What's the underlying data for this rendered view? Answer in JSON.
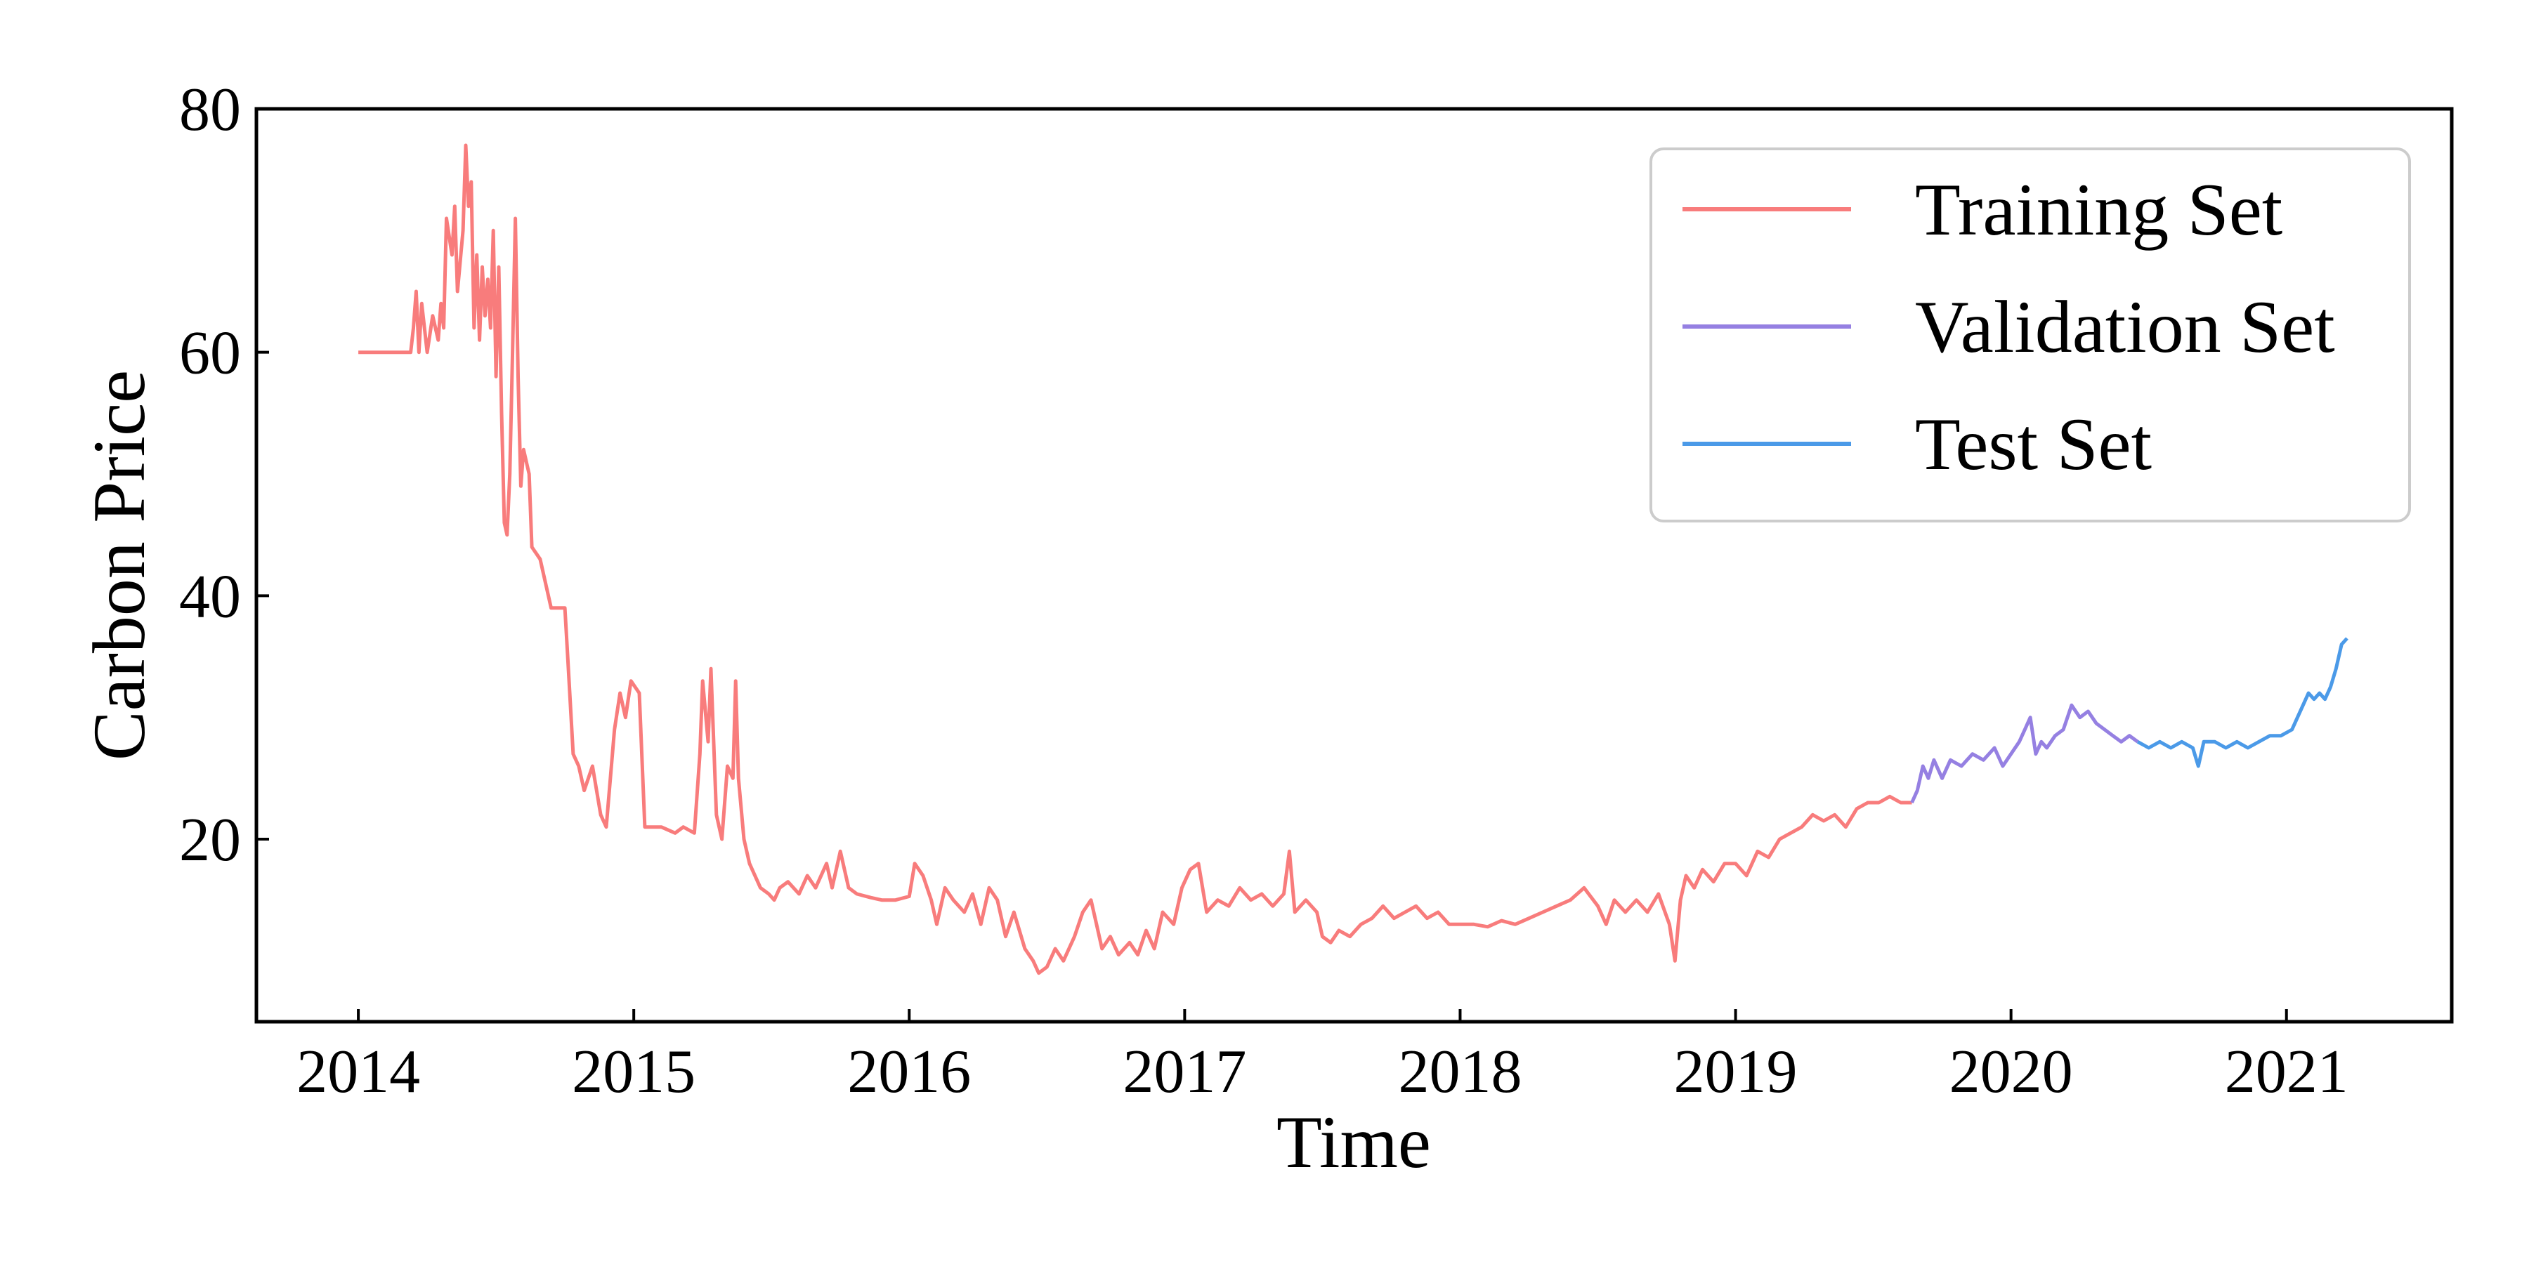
{
  "chart_data": {
    "type": "line",
    "title": "",
    "xlabel": "Time",
    "ylabel": "Carbon Price",
    "xlim": [
      2013.63,
      2021.6
    ],
    "ylim": [
      5,
      80
    ],
    "xticks": [
      2014,
      2015,
      2016,
      2017,
      2018,
      2019,
      2020,
      2021
    ],
    "yticks": [
      20,
      40,
      60,
      80
    ],
    "grid": false,
    "legend_position": "top-right",
    "series": [
      {
        "name": "Training Set",
        "color": "#f87c7c",
        "points": [
          [
            2014.0,
            60
          ],
          [
            2014.1,
            60
          ],
          [
            2014.19,
            60
          ],
          [
            2014.2,
            62
          ],
          [
            2014.21,
            65
          ],
          [
            2014.22,
            60
          ],
          [
            2014.23,
            64
          ],
          [
            2014.25,
            60
          ],
          [
            2014.27,
            63
          ],
          [
            2014.29,
            61
          ],
          [
            2014.3,
            64
          ],
          [
            2014.31,
            62
          ],
          [
            2014.32,
            71
          ],
          [
            2014.34,
            68
          ],
          [
            2014.35,
            72
          ],
          [
            2014.36,
            65
          ],
          [
            2014.38,
            70
          ],
          [
            2014.39,
            77
          ],
          [
            2014.4,
            72
          ],
          [
            2014.41,
            74
          ],
          [
            2014.42,
            62
          ],
          [
            2014.43,
            68
          ],
          [
            2014.44,
            61
          ],
          [
            2014.45,
            67
          ],
          [
            2014.46,
            63
          ],
          [
            2014.47,
            66
          ],
          [
            2014.48,
            62
          ],
          [
            2014.49,
            70
          ],
          [
            2014.5,
            58
          ],
          [
            2014.51,
            67
          ],
          [
            2014.52,
            55
          ],
          [
            2014.53,
            46
          ],
          [
            2014.54,
            45
          ],
          [
            2014.55,
            50
          ],
          [
            2014.56,
            60
          ],
          [
            2014.57,
            71
          ],
          [
            2014.58,
            58
          ],
          [
            2014.59,
            49
          ],
          [
            2014.6,
            52
          ],
          [
            2014.62,
            50
          ],
          [
            2014.63,
            44
          ],
          [
            2014.66,
            43
          ],
          [
            2014.7,
            39
          ],
          [
            2014.75,
            39
          ],
          [
            2014.76,
            35
          ],
          [
            2014.78,
            27
          ],
          [
            2014.8,
            26
          ],
          [
            2014.82,
            24
          ],
          [
            2014.85,
            26
          ],
          [
            2014.88,
            22
          ],
          [
            2014.9,
            21
          ],
          [
            2014.93,
            29
          ],
          [
            2014.95,
            32
          ],
          [
            2014.97,
            30
          ],
          [
            2014.99,
            33
          ],
          [
            2015.02,
            32
          ],
          [
            2015.04,
            21
          ],
          [
            2015.1,
            21
          ],
          [
            2015.15,
            20.5
          ],
          [
            2015.18,
            21
          ],
          [
            2015.22,
            20.5
          ],
          [
            2015.24,
            27
          ],
          [
            2015.25,
            33
          ],
          [
            2015.27,
            28
          ],
          [
            2015.28,
            34
          ],
          [
            2015.3,
            22
          ],
          [
            2015.32,
            20
          ],
          [
            2015.34,
            26
          ],
          [
            2015.36,
            25
          ],
          [
            2015.37,
            33
          ],
          [
            2015.38,
            25
          ],
          [
            2015.4,
            20
          ],
          [
            2015.42,
            18
          ],
          [
            2015.44,
            17
          ],
          [
            2015.46,
            16
          ],
          [
            2015.49,
            15.5
          ],
          [
            2015.51,
            15
          ],
          [
            2015.53,
            16
          ],
          [
            2015.56,
            16.5
          ],
          [
            2015.6,
            15.5
          ],
          [
            2015.63,
            17
          ],
          [
            2015.66,
            16
          ],
          [
            2015.7,
            18
          ],
          [
            2015.72,
            16
          ],
          [
            2015.75,
            19
          ],
          [
            2015.78,
            16
          ],
          [
            2015.81,
            15.5
          ],
          [
            2015.86,
            15.2
          ],
          [
            2015.9,
            15
          ],
          [
            2015.95,
            15
          ],
          [
            2016.0,
            15.3
          ],
          [
            2016.02,
            18
          ],
          [
            2016.05,
            17
          ],
          [
            2016.08,
            15
          ],
          [
            2016.1,
            13
          ],
          [
            2016.13,
            16
          ],
          [
            2016.16,
            15
          ],
          [
            2016.2,
            14
          ],
          [
            2016.23,
            15.5
          ],
          [
            2016.26,
            13
          ],
          [
            2016.29,
            16
          ],
          [
            2016.32,
            15
          ],
          [
            2016.35,
            12
          ],
          [
            2016.38,
            14
          ],
          [
            2016.42,
            11
          ],
          [
            2016.45,
            10
          ],
          [
            2016.47,
            9
          ],
          [
            2016.5,
            9.5
          ],
          [
            2016.53,
            11
          ],
          [
            2016.56,
            10
          ],
          [
            2016.6,
            12
          ],
          [
            2016.63,
            14
          ],
          [
            2016.66,
            15
          ],
          [
            2016.68,
            13
          ],
          [
            2016.7,
            11
          ],
          [
            2016.73,
            12
          ],
          [
            2016.76,
            10.5
          ],
          [
            2016.8,
            11.5
          ],
          [
            2016.83,
            10.5
          ],
          [
            2016.86,
            12.5
          ],
          [
            2016.89,
            11
          ],
          [
            2016.92,
            14
          ],
          [
            2016.96,
            13
          ],
          [
            2016.99,
            16
          ],
          [
            2017.02,
            17.5
          ],
          [
            2017.05,
            18
          ],
          [
            2017.08,
            14
          ],
          [
            2017.12,
            15
          ],
          [
            2017.16,
            14.5
          ],
          [
            2017.2,
            16
          ],
          [
            2017.24,
            15
          ],
          [
            2017.28,
            15.5
          ],
          [
            2017.32,
            14.5
          ],
          [
            2017.36,
            15.5
          ],
          [
            2017.38,
            19
          ],
          [
            2017.4,
            14
          ],
          [
            2017.44,
            15
          ],
          [
            2017.48,
            14
          ],
          [
            2017.5,
            12
          ],
          [
            2017.53,
            11.5
          ],
          [
            2017.56,
            12.5
          ],
          [
            2017.6,
            12
          ],
          [
            2017.64,
            13
          ],
          [
            2017.68,
            13.5
          ],
          [
            2017.72,
            14.5
          ],
          [
            2017.76,
            13.5
          ],
          [
            2017.8,
            14
          ],
          [
            2017.84,
            14.5
          ],
          [
            2017.88,
            13.5
          ],
          [
            2017.92,
            14
          ],
          [
            2017.96,
            13
          ],
          [
            2018.0,
            13
          ],
          [
            2018.05,
            13
          ],
          [
            2018.1,
            12.8
          ],
          [
            2018.15,
            13.3
          ],
          [
            2018.2,
            13
          ],
          [
            2018.25,
            13.5
          ],
          [
            2018.3,
            14
          ],
          [
            2018.35,
            14.5
          ],
          [
            2018.4,
            15
          ],
          [
            2018.45,
            16
          ],
          [
            2018.5,
            14.5
          ],
          [
            2018.53,
            13
          ],
          [
            2018.56,
            15
          ],
          [
            2018.6,
            14
          ],
          [
            2018.64,
            15
          ],
          [
            2018.68,
            14
          ],
          [
            2018.72,
            15.5
          ],
          [
            2018.76,
            13
          ],
          [
            2018.78,
            10
          ],
          [
            2018.8,
            15
          ],
          [
            2018.82,
            17
          ],
          [
            2018.85,
            16
          ],
          [
            2018.88,
            17.5
          ],
          [
            2018.92,
            16.5
          ],
          [
            2018.96,
            18
          ],
          [
            2019.0,
            18
          ],
          [
            2019.04,
            17
          ],
          [
            2019.08,
            19
          ],
          [
            2019.12,
            18.5
          ],
          [
            2019.16,
            20
          ],
          [
            2019.2,
            20.5
          ],
          [
            2019.24,
            21
          ],
          [
            2019.28,
            22
          ],
          [
            2019.32,
            21.5
          ],
          [
            2019.36,
            22
          ],
          [
            2019.4,
            21
          ],
          [
            2019.44,
            22.5
          ],
          [
            2019.48,
            23
          ],
          [
            2019.52,
            23
          ],
          [
            2019.56,
            23.5
          ],
          [
            2019.6,
            23
          ],
          [
            2019.64,
            23
          ]
        ]
      },
      {
        "name": "Validation Set",
        "color": "#9580e2",
        "points": [
          [
            2019.64,
            23
          ],
          [
            2019.66,
            24
          ],
          [
            2019.68,
            26
          ],
          [
            2019.7,
            25
          ],
          [
            2019.72,
            26.5
          ],
          [
            2019.75,
            25
          ],
          [
            2019.78,
            26.5
          ],
          [
            2019.82,
            26
          ],
          [
            2019.86,
            27
          ],
          [
            2019.9,
            26.5
          ],
          [
            2019.94,
            27.5
          ],
          [
            2019.97,
            26
          ],
          [
            2020.0,
            27
          ],
          [
            2020.03,
            28
          ],
          [
            2020.05,
            29
          ],
          [
            2020.07,
            30
          ],
          [
            2020.09,
            27
          ],
          [
            2020.11,
            28
          ],
          [
            2020.13,
            27.5
          ],
          [
            2020.16,
            28.5
          ],
          [
            2020.19,
            29
          ],
          [
            2020.22,
            31
          ],
          [
            2020.25,
            30
          ],
          [
            2020.28,
            30.5
          ],
          [
            2020.31,
            29.5
          ],
          [
            2020.34,
            29
          ],
          [
            2020.37,
            28.5
          ],
          [
            2020.4,
            28
          ],
          [
            2020.43,
            28.5
          ],
          [
            2020.46,
            28
          ]
        ]
      },
      {
        "name": "Test Set",
        "color": "#4b9ae8",
        "points": [
          [
            2020.46,
            28
          ],
          [
            2020.5,
            27.5
          ],
          [
            2020.54,
            28
          ],
          [
            2020.58,
            27.5
          ],
          [
            2020.62,
            28
          ],
          [
            2020.66,
            27.5
          ],
          [
            2020.68,
            26
          ],
          [
            2020.7,
            28
          ],
          [
            2020.74,
            28
          ],
          [
            2020.78,
            27.5
          ],
          [
            2020.82,
            28
          ],
          [
            2020.86,
            27.5
          ],
          [
            2020.9,
            28
          ],
          [
            2020.94,
            28.5
          ],
          [
            2020.98,
            28.5
          ],
          [
            2021.02,
            29
          ],
          [
            2021.04,
            30
          ],
          [
            2021.06,
            31
          ],
          [
            2021.08,
            32
          ],
          [
            2021.1,
            31.5
          ],
          [
            2021.12,
            32
          ],
          [
            2021.14,
            31.5
          ],
          [
            2021.16,
            32.5
          ],
          [
            2021.18,
            34
          ],
          [
            2021.2,
            36
          ],
          [
            2021.22,
            36.5
          ]
        ]
      }
    ]
  }
}
